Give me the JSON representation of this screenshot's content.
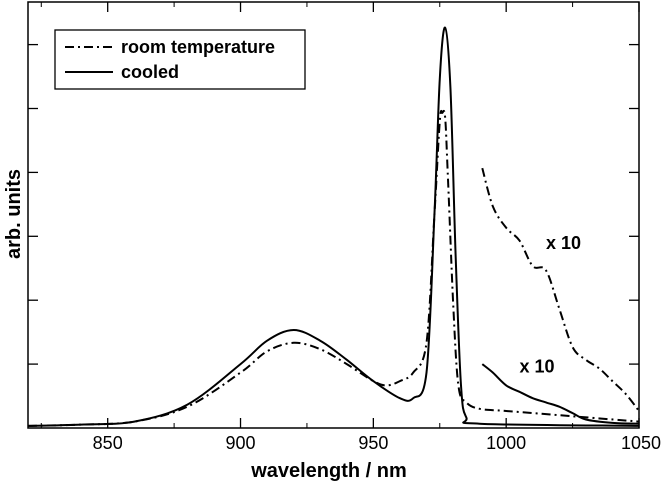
{
  "chart_data": {
    "type": "line",
    "title": "",
    "xlabel": "wavelength / nm",
    "ylabel": "arb. units",
    "xlim": [
      820,
      1050
    ],
    "ylim": [
      0,
      1
    ],
    "x_ticks": [
      850,
      900,
      950,
      1000,
      1050
    ],
    "x_tick_labels": [
      "850",
      "900",
      "950",
      "1000",
      "1050"
    ],
    "y_ticks": [
      0.15,
      0.3,
      0.45,
      0.6,
      0.75,
      0.9
    ],
    "y_tick_labels_shown": false,
    "grid": false,
    "legend_position": "top-left",
    "series": [
      {
        "name": "room temperature",
        "style": "dash-dot",
        "points": [
          [
            820,
            0.005
          ],
          [
            840,
            0.008
          ],
          [
            860,
            0.015
          ],
          [
            880,
            0.05
          ],
          [
            900,
            0.13
          ],
          [
            910,
            0.18
          ],
          [
            920,
            0.2
          ],
          [
            930,
            0.185
          ],
          [
            940,
            0.15
          ],
          [
            950,
            0.11
          ],
          [
            955,
            0.1
          ],
          [
            960,
            0.11
          ],
          [
            965,
            0.13
          ],
          [
            970,
            0.2
          ],
          [
            973,
            0.5
          ],
          [
            975,
            0.72
          ],
          [
            976,
            0.74
          ],
          [
            977,
            0.73
          ],
          [
            978,
            0.6
          ],
          [
            980,
            0.3
          ],
          [
            982,
            0.1
          ],
          [
            985,
            0.06
          ],
          [
            990,
            0.045
          ],
          [
            1000,
            0.04
          ],
          [
            1020,
            0.03
          ],
          [
            1050,
            0.015
          ]
        ]
      },
      {
        "name": "cooled",
        "style": "solid",
        "points": [
          [
            820,
            0.005
          ],
          [
            840,
            0.008
          ],
          [
            860,
            0.015
          ],
          [
            880,
            0.055
          ],
          [
            900,
            0.15
          ],
          [
            910,
            0.205
          ],
          [
            920,
            0.23
          ],
          [
            930,
            0.205
          ],
          [
            940,
            0.16
          ],
          [
            950,
            0.11
          ],
          [
            960,
            0.07
          ],
          [
            965,
            0.07
          ],
          [
            970,
            0.13
          ],
          [
            973,
            0.5
          ],
          [
            975,
            0.82
          ],
          [
            977,
            0.94
          ],
          [
            979,
            0.8
          ],
          [
            981,
            0.4
          ],
          [
            983,
            0.1
          ],
          [
            985,
            0.025
          ],
          [
            990,
            0.01
          ],
          [
            1050,
            0.005
          ]
        ]
      },
      {
        "name": "",
        "style": "dash-dot",
        "annotation": "x 10",
        "points": [
          [
            991,
            0.61
          ],
          [
            995,
            0.52
          ],
          [
            1000,
            0.47
          ],
          [
            1005,
            0.44
          ],
          [
            1010,
            0.38
          ],
          [
            1015,
            0.37
          ],
          [
            1020,
            0.28
          ],
          [
            1025,
            0.19
          ],
          [
            1030,
            0.16
          ],
          [
            1035,
            0.14
          ],
          [
            1040,
            0.11
          ],
          [
            1045,
            0.08
          ],
          [
            1050,
            0.04
          ]
        ]
      },
      {
        "name": "",
        "style": "solid",
        "annotation": "x 10",
        "points": [
          [
            991,
            0.15
          ],
          [
            995,
            0.13
          ],
          [
            1000,
            0.1
          ],
          [
            1005,
            0.085
          ],
          [
            1010,
            0.07
          ],
          [
            1015,
            0.06
          ],
          [
            1020,
            0.05
          ],
          [
            1025,
            0.035
          ],
          [
            1030,
            0.02
          ],
          [
            1040,
            0.012
          ],
          [
            1050,
            0.01
          ]
        ]
      }
    ],
    "annotations": [
      {
        "text": "x 10",
        "x": 1015,
        "y": 0.42
      },
      {
        "text": "x 10",
        "x": 1005,
        "y": 0.13
      }
    ]
  }
}
